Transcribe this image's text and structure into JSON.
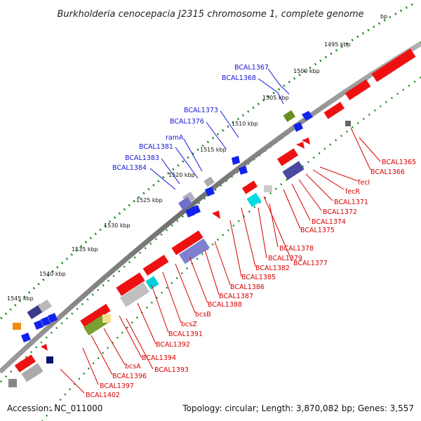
{
  "title": "Burkholderia cenocepacia J2315 chromosome 1, complete genome",
  "footer": {
    "accession": "Accession: NC_011000",
    "summary": "Topology: circular; Length: 3,870,082 bp; Genes: 3,557"
  },
  "ticks": [
    "bp",
    "1495 kbp",
    "1500 kbp",
    "1505 kbp",
    "1510 kbp",
    "1515 kbp",
    "1520 kbp",
    "1525 kbp",
    "1530 kbp",
    "1535 kbp",
    "1540 kbp",
    "1545 kbp"
  ],
  "labels_reverse": [
    "BCAL1367",
    "BCAL1368",
    "BCAL1373",
    "BCAL1376",
    "ramA",
    "BCAL1381",
    "BCAL1383",
    "BCAL1384"
  ],
  "labels_forward": [
    "BCAL1365",
    "BCAL1366",
    "fecI",
    "fecR",
    "BCAL1371",
    "BCAL1372",
    "BCAL1374",
    "BCAL1375",
    "BCAL1377",
    "BCAL1378",
    "BCAL1379",
    "BCAL1382",
    "BCAL1385",
    "BCAL1386",
    "BCAL1387",
    "BCAL1388",
    "bcsB",
    "bcsZ",
    "BCAL1391",
    "BCAL1392",
    "BCAL1394",
    "BCAL1393",
    "bcsA",
    "BCAL1396",
    "BCAL1397",
    "BCAL1402"
  ],
  "colors": {
    "forward_gene": "#ee1111",
    "reverse_gene": "#1122ee",
    "backbone": "#888888",
    "tick_dots": "#1a8a1a",
    "label_reverse": "#1515d8",
    "label_forward": "#d80000"
  }
}
